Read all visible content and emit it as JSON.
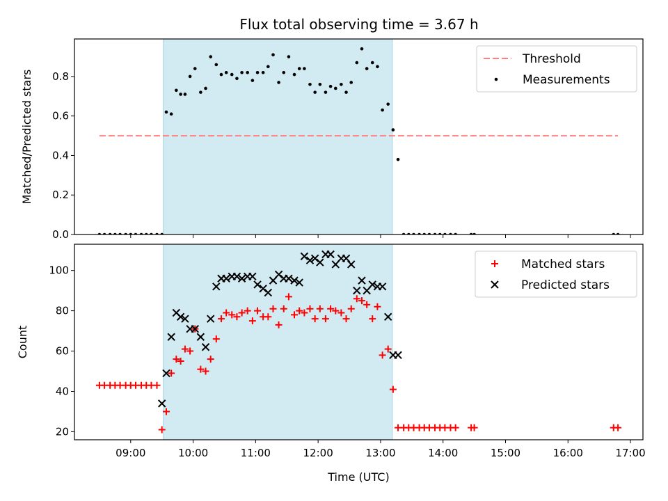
{
  "title": "Flux total observing time = 3.67 h",
  "colors": {
    "threshold": "#ff8080",
    "measurement": "#000000",
    "matched": "#ff0000",
    "predicted": "#000000",
    "shade": "#add8e6"
  },
  "chart_data": [
    {
      "type": "scatter",
      "ylabel": "Matched/Predicted stars",
      "xlim": [
        8.1,
        17.2
      ],
      "ylim": [
        0,
        0.99
      ],
      "yticks": [
        0.0,
        0.2,
        0.4,
        0.6,
        0.8
      ],
      "ytick_labels": [
        "0.0",
        "0.2",
        "0.4",
        "0.6",
        "0.8"
      ],
      "shaded_range": [
        9.52,
        13.19
      ],
      "threshold": {
        "name": "Threshold",
        "y": 0.5,
        "x_range": [
          8.5,
          16.8
        ]
      },
      "legend": [
        "Threshold",
        "Measurements"
      ],
      "legend_position": "upper right",
      "series": [
        {
          "name": "Measurements",
          "x": [
            8.5,
            8.58,
            8.67,
            8.75,
            8.83,
            8.92,
            9.0,
            9.08,
            9.17,
            9.25,
            9.33,
            9.42,
            9.5,
            9.57,
            9.65,
            9.73,
            9.8,
            9.87,
            9.95,
            10.03,
            10.12,
            10.2,
            10.28,
            10.37,
            10.45,
            10.53,
            10.62,
            10.7,
            10.78,
            10.87,
            10.95,
            11.03,
            11.12,
            11.2,
            11.28,
            11.37,
            11.45,
            11.53,
            11.62,
            11.7,
            11.78,
            11.87,
            11.95,
            12.03,
            12.12,
            12.2,
            12.28,
            12.37,
            12.45,
            12.53,
            12.62,
            12.7,
            12.78,
            12.87,
            12.95,
            13.03,
            13.12,
            13.2,
            13.28,
            13.37,
            13.45,
            13.53,
            13.62,
            13.7,
            13.78,
            13.87,
            13.95,
            14.03,
            14.12,
            14.2,
            14.45,
            14.5,
            16.73,
            16.8
          ],
          "y": [
            0,
            0,
            0,
            0,
            0,
            0,
            0,
            0,
            0,
            0,
            0,
            0,
            0,
            0.62,
            0.61,
            0.73,
            0.71,
            0.71,
            0.8,
            0.84,
            0.72,
            0.74,
            0.9,
            0.86,
            0.81,
            0.82,
            0.81,
            0.79,
            0.82,
            0.82,
            0.78,
            0.82,
            0.82,
            0.85,
            0.91,
            0.77,
            0.82,
            0.9,
            0.81,
            0.84,
            0.84,
            0.76,
            0.72,
            0.76,
            0.72,
            0.75,
            0.74,
            0.76,
            0.72,
            0.77,
            0.87,
            0.94,
            0.84,
            0.87,
            0.85,
            0.63,
            0.66,
            0.53,
            0.38,
            0,
            0,
            0,
            0,
            0,
            0,
            0,
            0,
            0,
            0,
            0,
            0,
            0,
            0,
            0
          ]
        }
      ]
    },
    {
      "type": "scatter",
      "xlabel": "Time (UTC)",
      "ylabel": "Count",
      "xlim": [
        8.1,
        17.2
      ],
      "ylim": [
        16,
        113
      ],
      "xticks": [
        9,
        10,
        11,
        12,
        13,
        14,
        15,
        16,
        17
      ],
      "xtick_labels": [
        "09:00",
        "10:00",
        "11:00",
        "12:00",
        "13:00",
        "14:00",
        "15:00",
        "16:00",
        "17:00"
      ],
      "yticks": [
        20,
        40,
        60,
        80,
        100
      ],
      "ytick_labels": [
        "20",
        "40",
        "60",
        "80",
        "100"
      ],
      "shaded_range": [
        9.52,
        13.19
      ],
      "legend": [
        "Matched stars",
        "Predicted stars"
      ],
      "legend_position": "upper right",
      "series": [
        {
          "name": "Matched stars",
          "marker": "plus",
          "x": [
            8.5,
            8.58,
            8.67,
            8.75,
            8.83,
            8.92,
            9.0,
            9.08,
            9.17,
            9.25,
            9.33,
            9.42,
            9.5,
            9.57,
            9.65,
            9.73,
            9.8,
            9.87,
            9.95,
            10.03,
            10.12,
            10.2,
            10.28,
            10.37,
            10.45,
            10.53,
            10.62,
            10.7,
            10.78,
            10.87,
            10.95,
            11.03,
            11.12,
            11.2,
            11.28,
            11.37,
            11.45,
            11.53,
            11.62,
            11.7,
            11.78,
            11.87,
            11.95,
            12.03,
            12.12,
            12.2,
            12.28,
            12.37,
            12.45,
            12.53,
            12.62,
            12.7,
            12.78,
            12.87,
            12.95,
            13.03,
            13.12,
            13.2,
            13.28,
            13.37,
            13.45,
            13.53,
            13.62,
            13.7,
            13.78,
            13.87,
            13.95,
            14.03,
            14.12,
            14.2,
            14.45,
            14.5,
            16.73,
            16.8
          ],
          "y": [
            43,
            43,
            43,
            43,
            43,
            43,
            43,
            43,
            43,
            43,
            43,
            43,
            21,
            30,
            49,
            56,
            55,
            61,
            60,
            71,
            51,
            50,
            56,
            66,
            76,
            79,
            78,
            77,
            79,
            80,
            75,
            80,
            77,
            77,
            81,
            73,
            81,
            87,
            78,
            80,
            79,
            81,
            76,
            81,
            76,
            81,
            80,
            79,
            76,
            81,
            86,
            85,
            83,
            76,
            82,
            58,
            61,
            41,
            22,
            22,
            22,
            22,
            22,
            22,
            22,
            22,
            22,
            22,
            22,
            22,
            22,
            22,
            22,
            22
          ]
        },
        {
          "name": "Predicted stars",
          "marker": "cross",
          "x": [
            9.5,
            9.57,
            9.65,
            9.73,
            9.8,
            9.87,
            9.95,
            10.03,
            10.12,
            10.2,
            10.28,
            10.37,
            10.45,
            10.53,
            10.62,
            10.7,
            10.78,
            10.87,
            10.95,
            11.03,
            11.12,
            11.2,
            11.28,
            11.37,
            11.45,
            11.53,
            11.62,
            11.7,
            11.78,
            11.87,
            11.95,
            12.03,
            12.12,
            12.2,
            12.28,
            12.37,
            12.45,
            12.53,
            12.62,
            12.7,
            12.78,
            12.87,
            12.95,
            13.03,
            13.12,
            13.2,
            13.28
          ],
          "y": [
            34,
            49,
            67,
            79,
            77,
            76,
            71,
            71,
            67,
            62,
            76,
            92,
            96,
            96,
            97,
            97,
            96,
            97,
            97,
            93,
            91,
            89,
            95,
            98,
            96,
            96,
            95,
            94,
            107,
            105,
            106,
            104,
            108,
            108,
            103,
            106,
            106,
            103,
            90,
            95,
            90,
            93,
            92,
            92,
            77,
            58,
            58
          ]
        }
      ]
    }
  ]
}
